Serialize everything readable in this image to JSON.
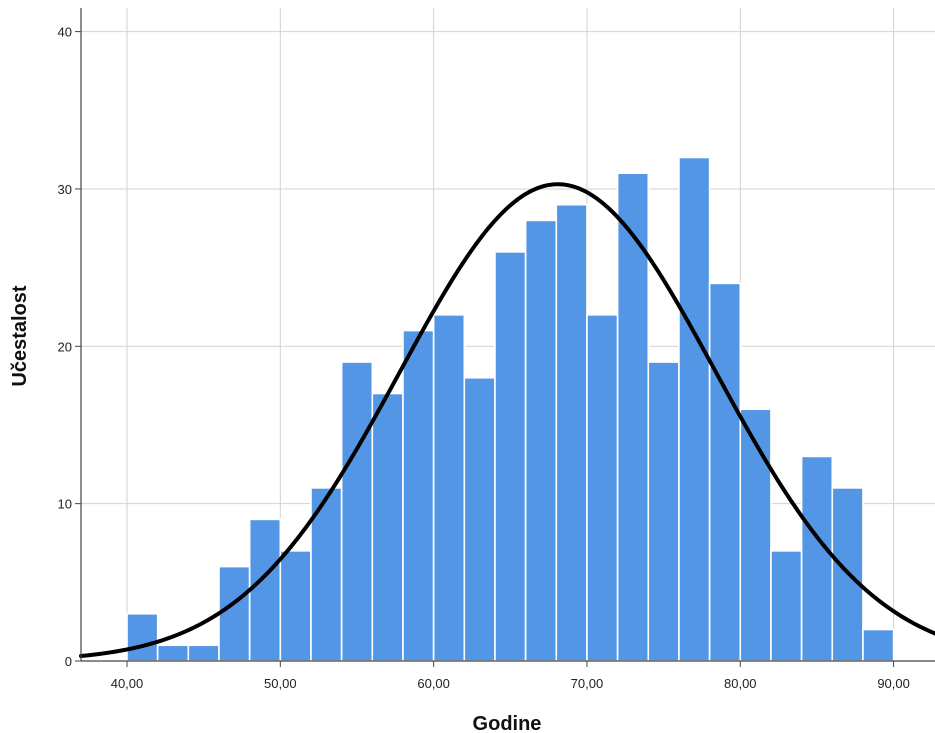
{
  "chart_data": {
    "type": "bar",
    "subtype": "histogram",
    "xlabel": "Godine",
    "ylabel": "Učestalost",
    "xlim": [
      37,
      92.7
    ],
    "ylim": [
      0,
      41.5
    ],
    "bin_width": 2,
    "bins": [
      {
        "start": 40,
        "end": 42,
        "count": 3
      },
      {
        "start": 42,
        "end": 44,
        "count": 1
      },
      {
        "start": 44,
        "end": 46,
        "count": 1
      },
      {
        "start": 46,
        "end": 48,
        "count": 6
      },
      {
        "start": 48,
        "end": 50,
        "count": 9
      },
      {
        "start": 50,
        "end": 52,
        "count": 7
      },
      {
        "start": 52,
        "end": 54,
        "count": 11
      },
      {
        "start": 54,
        "end": 56,
        "count": 19
      },
      {
        "start": 56,
        "end": 58,
        "count": 17
      },
      {
        "start": 58,
        "end": 60,
        "count": 21
      },
      {
        "start": 60,
        "end": 62,
        "count": 22
      },
      {
        "start": 62,
        "end": 64,
        "count": 18
      },
      {
        "start": 64,
        "end": 66,
        "count": 26
      },
      {
        "start": 66,
        "end": 68,
        "count": 28
      },
      {
        "start": 68,
        "end": 70,
        "count": 29
      },
      {
        "start": 70,
        "end": 72,
        "count": 22
      },
      {
        "start": 72,
        "end": 74,
        "count": 31
      },
      {
        "start": 74,
        "end": 76,
        "count": 19
      },
      {
        "start": 76,
        "end": 78,
        "count": 32
      },
      {
        "start": 78,
        "end": 80,
        "count": 24
      },
      {
        "start": 80,
        "end": 82,
        "count": 16
      },
      {
        "start": 82,
        "end": 84,
        "count": 7
      },
      {
        "start": 84,
        "end": 86,
        "count": 13
      },
      {
        "start": 86,
        "end": 88,
        "count": 11
      },
      {
        "start": 88,
        "end": 90,
        "count": 2
      }
    ],
    "x_ticks": [
      {
        "value": 40,
        "label": "40,00"
      },
      {
        "value": 50,
        "label": "50,00"
      },
      {
        "value": 60,
        "label": "60,00"
      },
      {
        "value": 70,
        "label": "70,00"
      },
      {
        "value": 80,
        "label": "80,00"
      },
      {
        "value": 90,
        "label": "90,00"
      }
    ],
    "y_ticks": [
      {
        "value": 0,
        "label": "0"
      },
      {
        "value": 10,
        "label": "10"
      },
      {
        "value": 20,
        "label": "20"
      },
      {
        "value": 30,
        "label": "30"
      },
      {
        "value": 40,
        "label": "40"
      }
    ],
    "normal_curve": {
      "mean": 68.1,
      "sd": 10.3,
      "peak": 30.3
    },
    "grid": true,
    "legend": "none",
    "colors": {
      "bar_fill": "#5496e6",
      "bar_edge": "#ffffff",
      "curve": "#000000",
      "grid": "#d2d2d2",
      "axis": "#444444"
    }
  }
}
